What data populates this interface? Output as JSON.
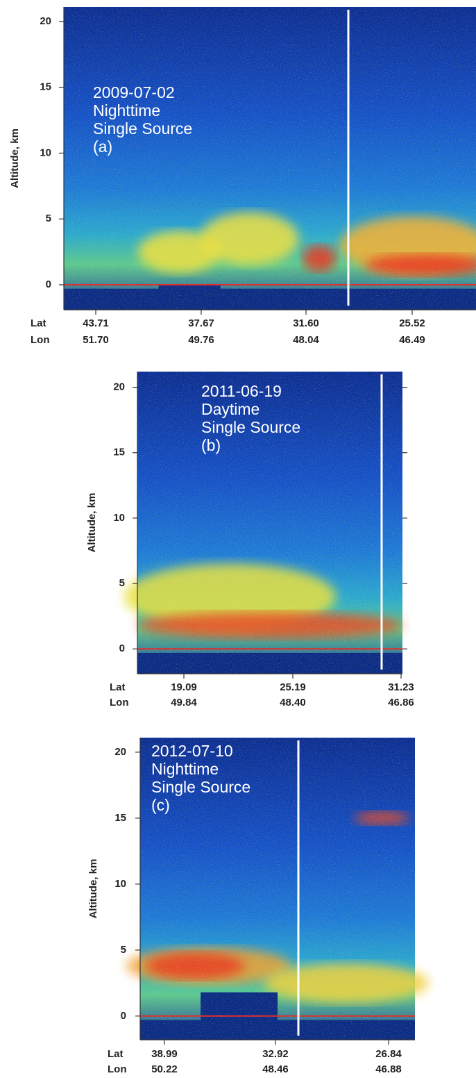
{
  "chart_data": [
    {
      "type": "curtain",
      "ylabel": "Altitude, km",
      "ylim": [
        -1.9,
        21.1
      ],
      "yticks": [
        0,
        5,
        10,
        15,
        20
      ],
      "row_labels": [
        "Lat",
        "Lon"
      ],
      "lat": [
        "43.71",
        "37.67",
        "31.60",
        "25.52"
      ],
      "lon": [
        "51.70",
        "49.76",
        "48.04",
        "46.49"
      ],
      "annotation": [
        "2009-07-02",
        "Nighttime",
        "Single Source",
        "(a)"
      ]
    },
    {
      "type": "curtain",
      "ylabel": "Altitude, km",
      "ylim": [
        -1.9,
        21.2
      ],
      "yticks": [
        0,
        5,
        10,
        15,
        20
      ],
      "row_labels": [
        "Lat",
        "Lon"
      ],
      "lat": [
        "19.09",
        "25.19",
        "31.23"
      ],
      "lon": [
        "49.84",
        "48.40",
        "46.86"
      ],
      "annotation": [
        "2011-06-19",
        "Daytime",
        "Single Source",
        "(b)"
      ]
    },
    {
      "type": "curtain",
      "ylabel": "Altitude, km",
      "ylim": [
        -1.8,
        21.1
      ],
      "yticks": [
        0,
        5,
        10,
        15,
        20
      ],
      "row_labels": [
        "Lat",
        "Lon"
      ],
      "lat": [
        "38.99",
        "32.92",
        "26.84"
      ],
      "lon": [
        "50.22",
        "48.46",
        "46.88"
      ],
      "annotation": [
        "2012-07-10",
        "Nighttime",
        "Single Source",
        "(c)"
      ]
    }
  ]
}
